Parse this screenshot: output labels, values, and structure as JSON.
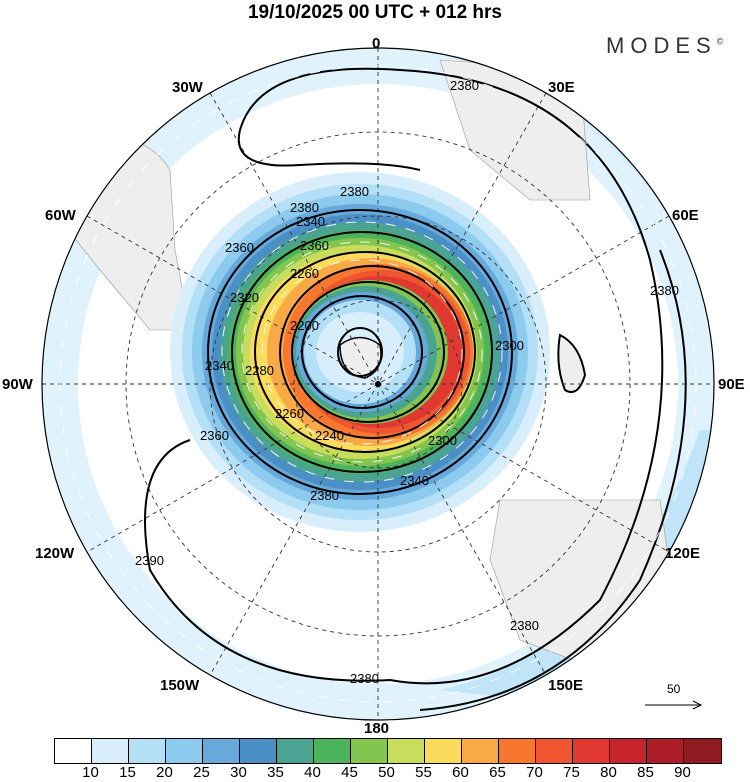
{
  "title": "19/10/2025  00 UTC  + 012 hrs",
  "logo": "MODES",
  "logo_mark": "©",
  "longitude_labels": {
    "top": "0",
    "top_left": "30W",
    "top_right": "30E",
    "upper_left": "60W",
    "upper_right": "60E",
    "left": "90W",
    "right": "90E",
    "lower_left": "120W",
    "lower_right": "120E",
    "bottom_left": "150W",
    "bottom_right": "150E",
    "bottom": "180"
  },
  "contour_labels": [
    "2380",
    "2380",
    "2360",
    "2340",
    "2360",
    "2320",
    "2340",
    "2280",
    "2260",
    "2200",
    "2260",
    "2240",
    "2300",
    "2340",
    "2360",
    "2380",
    "2380",
    "2390",
    "2380",
    "2380",
    "2380",
    "2300"
  ],
  "vector_scale": "50",
  "colorbar": {
    "ticks": [
      "10",
      "15",
      "20",
      "25",
      "30",
      "35",
      "40",
      "45",
      "50",
      "55",
      "60",
      "65",
      "70",
      "75",
      "80",
      "85",
      "90"
    ],
    "colors": [
      "#ffffff",
      "#d8effb",
      "#b3e0f7",
      "#8ccbee",
      "#66a9da",
      "#4a90c6",
      "#4ba392",
      "#4db45c",
      "#83c54f",
      "#c8dd5c",
      "#fbdb5b",
      "#f9aa47",
      "#f7772f",
      "#ee5530",
      "#e13832",
      "#c7232d",
      "#ad1d28",
      "#901c22"
    ]
  }
}
